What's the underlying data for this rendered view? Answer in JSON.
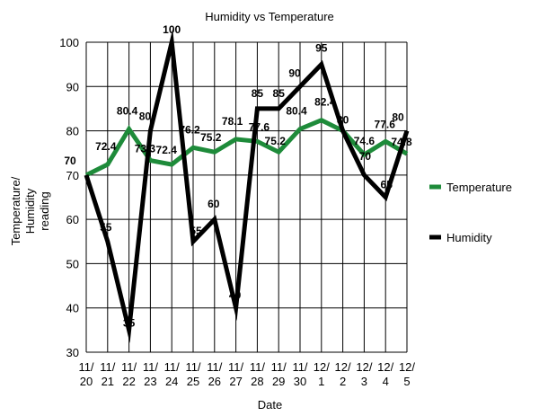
{
  "chart_data": {
    "type": "line",
    "title": "Humidity vs Temperature",
    "xlabel": "Date",
    "ylabel": [
      "Temperature/",
      "Humidity",
      "reading"
    ],
    "ylim": [
      30,
      100
    ],
    "yticks": [
      "30",
      "40",
      "50",
      "60",
      "70",
      "80",
      "90",
      "100"
    ],
    "categories": [
      [
        "11/",
        "20"
      ],
      [
        "11/",
        "21"
      ],
      [
        "11/",
        "22"
      ],
      [
        "11/",
        "23"
      ],
      [
        "11/",
        "24"
      ],
      [
        "11/",
        "25"
      ],
      [
        "11/",
        "26"
      ],
      [
        "11/",
        "27"
      ],
      [
        "11/",
        "28"
      ],
      [
        "11/",
        "29"
      ],
      [
        "11/",
        "30"
      ],
      [
        "12/",
        "1"
      ],
      [
        "12/",
        "2"
      ],
      [
        "12/",
        "3"
      ],
      [
        "12/",
        "4"
      ],
      [
        "12/",
        "5"
      ]
    ],
    "grid": true,
    "legend_position": "right",
    "series": [
      {
        "name": "Temperature",
        "color": "#1e8b3a",
        "values": [
          70,
          72.4,
          80.4,
          73.3,
          72.4,
          76.2,
          75.2,
          78.1,
          77.6,
          75.2,
          80.4,
          82.4,
          80,
          74.6,
          77.6,
          74.8
        ],
        "labels": [
          "70",
          "72.4",
          "80.4",
          "73.3",
          "72.4",
          "76.2",
          "75.2",
          "78.1",
          "77.6",
          "75.2",
          "80.4",
          "82.4",
          "",
          "74.6",
          "77.6",
          "74.8"
        ]
      },
      {
        "name": "Humidity",
        "color": "#000000",
        "values": [
          70,
          55,
          35,
          80,
          100,
          55,
          60,
          40,
          85,
          85,
          90,
          95,
          80,
          70,
          65,
          80
        ],
        "labels": [
          "",
          "55",
          "35",
          "80",
          "100",
          "55",
          "60",
          "40",
          "85",
          "85",
          "90",
          "95",
          "80",
          "70",
          "65",
          "80"
        ]
      }
    ]
  }
}
